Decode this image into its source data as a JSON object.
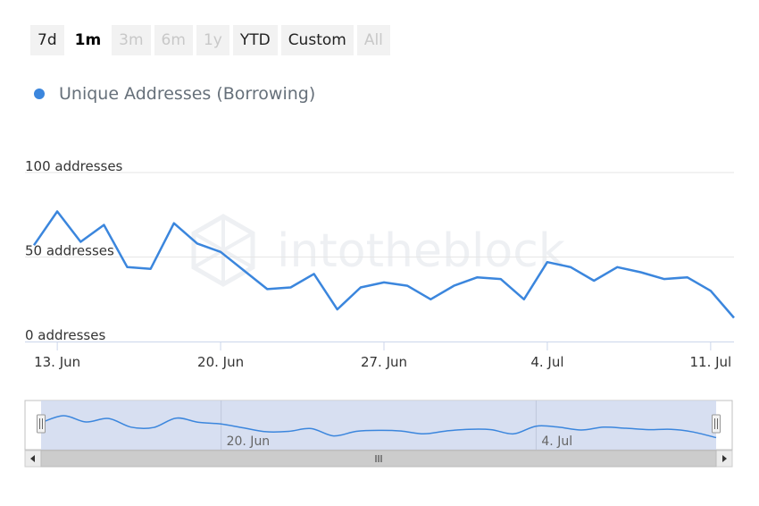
{
  "range_selector": {
    "buttons": [
      {
        "label": "7d",
        "state": "normal"
      },
      {
        "label": "1m",
        "state": "active"
      },
      {
        "label": "3m",
        "state": "disabled"
      },
      {
        "label": "6m",
        "state": "disabled"
      },
      {
        "label": "1y",
        "state": "disabled"
      },
      {
        "label": "YTD",
        "state": "normal"
      },
      {
        "label": "Custom",
        "state": "normal"
      },
      {
        "label": "All",
        "state": "disabled"
      }
    ]
  },
  "legend": {
    "label": "Unique Addresses (Borrowing)"
  },
  "watermark": {
    "text": "intotheblock"
  },
  "colors": {
    "series": "#3b86dd",
    "grid": "#e6e6e6",
    "axis": "#ccd6eb",
    "navigator_fill": "#d0d9ef",
    "navigator_border": "#c0c0c0",
    "scrollbar_bg": "#e6e6e6",
    "scrollbar_thumb": "#cccccc"
  },
  "chart_data": {
    "type": "line",
    "title": "",
    "ylabel": "",
    "ylim": [
      0,
      100
    ],
    "y_ticks": [
      {
        "value": 0,
        "label": "0 addresses"
      },
      {
        "value": 50,
        "label": "50 addresses"
      },
      {
        "value": 100,
        "label": "100 addresses"
      }
    ],
    "x_ticks": [
      {
        "date": "2023-06-13",
        "label": "13. Jun"
      },
      {
        "date": "2023-06-20",
        "label": "20. Jun"
      },
      {
        "date": "2023-06-27",
        "label": "27. Jun"
      },
      {
        "date": "2023-07-04",
        "label": "4. Jul"
      },
      {
        "date": "2023-07-11",
        "label": "11. Jul"
      }
    ],
    "x_range": [
      "2023-06-12",
      "2023-07-12"
    ],
    "grid": true,
    "legend_position": "top-left",
    "series": [
      {
        "name": "Unique Addresses (Borrowing)",
        "x": [
          "2023-06-12",
          "2023-06-13",
          "2023-06-14",
          "2023-06-15",
          "2023-06-16",
          "2023-06-17",
          "2023-06-18",
          "2023-06-19",
          "2023-06-20",
          "2023-06-21",
          "2023-06-22",
          "2023-06-23",
          "2023-06-24",
          "2023-06-25",
          "2023-06-26",
          "2023-06-27",
          "2023-06-28",
          "2023-06-29",
          "2023-06-30",
          "2023-07-01",
          "2023-07-02",
          "2023-07-03",
          "2023-07-04",
          "2023-07-05",
          "2023-07-06",
          "2023-07-07",
          "2023-07-08",
          "2023-07-09",
          "2023-07-10",
          "2023-07-11",
          "2023-07-12"
        ],
        "values": [
          57,
          77,
          59,
          69,
          44,
          43,
          70,
          58,
          53,
          42,
          31,
          32,
          40,
          19,
          32,
          35,
          33,
          25,
          33,
          38,
          37,
          25,
          47,
          44,
          36,
          44,
          41,
          37,
          38,
          30,
          14
        ]
      }
    ],
    "navigator": {
      "x_ticks": [
        {
          "date": "2023-06-20",
          "label": "20. Jun"
        },
        {
          "date": "2023-07-04",
          "label": "4. Jul"
        }
      ]
    }
  }
}
